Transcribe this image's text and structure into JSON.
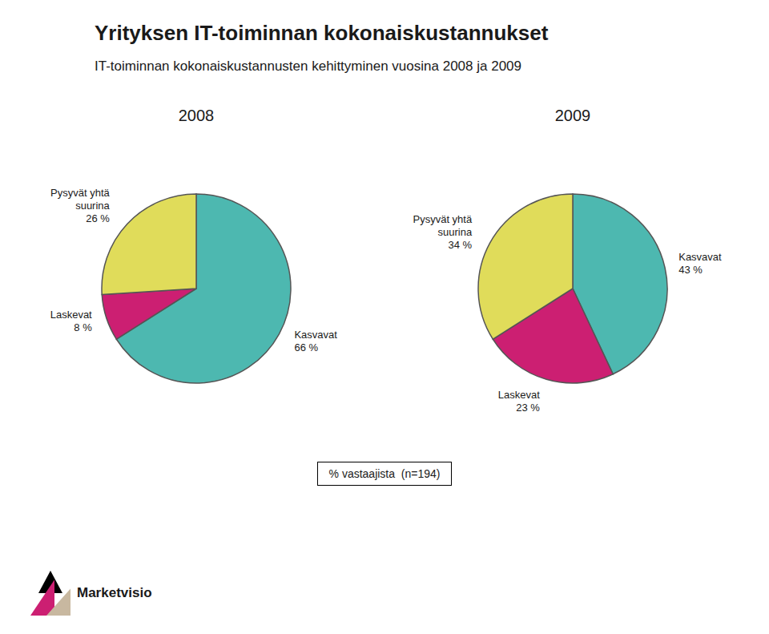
{
  "chart_data": [
    {
      "type": "pie",
      "title": "2008",
      "categories": [
        "Kasvavat",
        "Laskevat",
        "Pysyvät yhtä suurina"
      ],
      "values": [
        66,
        8,
        26
      ],
      "value_labels": [
        "66 %",
        "8 %",
        "26 %"
      ],
      "colors": [
        "#4db8b0",
        "#cc1f72",
        "#e0dc5a"
      ],
      "data_labels": true
    },
    {
      "type": "pie",
      "title": "2009",
      "categories": [
        "Kasvavat",
        "Laskevat",
        "Pysyvät yhtä suurina"
      ],
      "values": [
        43,
        23,
        34
      ],
      "value_labels": [
        "43 %",
        "23 %",
        "34 %"
      ],
      "colors": [
        "#4db8b0",
        "#cc1f72",
        "#e0dc5a"
      ],
      "data_labels": true
    }
  ],
  "title": "Yrityksen IT-toiminnan kokonaiskustannukset",
  "subtitle": "IT-toiminnan kokonaiskustannusten kehittyminen vuosina 2008 ja 2009",
  "annotations": [
    "% vastaajista  (n=194)",
    "Marketvisio"
  ]
}
